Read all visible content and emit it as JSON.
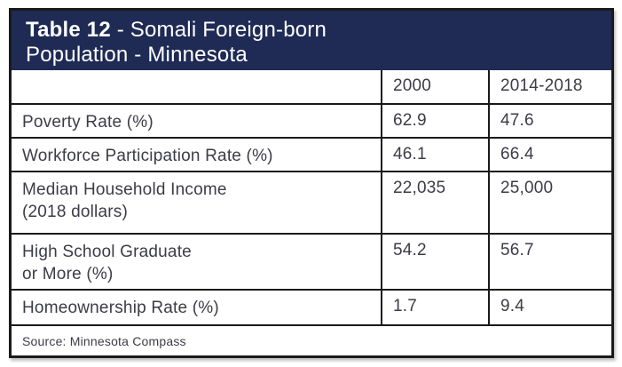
{
  "table": {
    "title": {
      "bold": "Table 12",
      "rest_line1": " - Somali Foreign-born",
      "line2": "Population - Minnesota"
    },
    "columns": {
      "label": "",
      "year_2000": "2000",
      "year_2014_2018": "2014-2018"
    },
    "rows": [
      {
        "label": "Poverty Rate (%)",
        "y2000": "62.9",
        "y2014_2018": "47.6"
      },
      {
        "label": "Workforce Participation Rate (%)",
        "y2000": "46.1",
        "y2014_2018": "66.4"
      },
      {
        "label": "Median Household Income\n(2018 dollars)",
        "y2000": "22,035",
        "y2014_2018": "25,000"
      },
      {
        "label": "High School Graduate\nor More (%)",
        "y2000": "54.2",
        "y2014_2018": "56.7"
      },
      {
        "label": "Homeownership Rate (%)",
        "y2000": "1.7",
        "y2014_2018": "9.4"
      }
    ],
    "source": "Source: Minnesota Compass"
  },
  "colors": {
    "header_background": "#1f2b55",
    "border": "#1a1a1a",
    "body_text": "#3c3c47",
    "title_text": "#ffffff"
  },
  "chart_data": {
    "type": "table",
    "title": "Table 12 - Somali Foreign-born Population - Minnesota",
    "columns": [
      "",
      "2000",
      "2014-2018"
    ],
    "rows": [
      [
        "Poverty Rate (%)",
        62.9,
        47.6
      ],
      [
        "Workforce Participation Rate (%)",
        46.1,
        66.4
      ],
      [
        "Median Household Income (2018 dollars)",
        22035,
        25000
      ],
      [
        "High School Graduate or More (%)",
        54.2,
        56.7
      ],
      [
        "Homeownership Rate (%)",
        1.7,
        9.4
      ]
    ],
    "source": "Source: Minnesota Compass"
  }
}
